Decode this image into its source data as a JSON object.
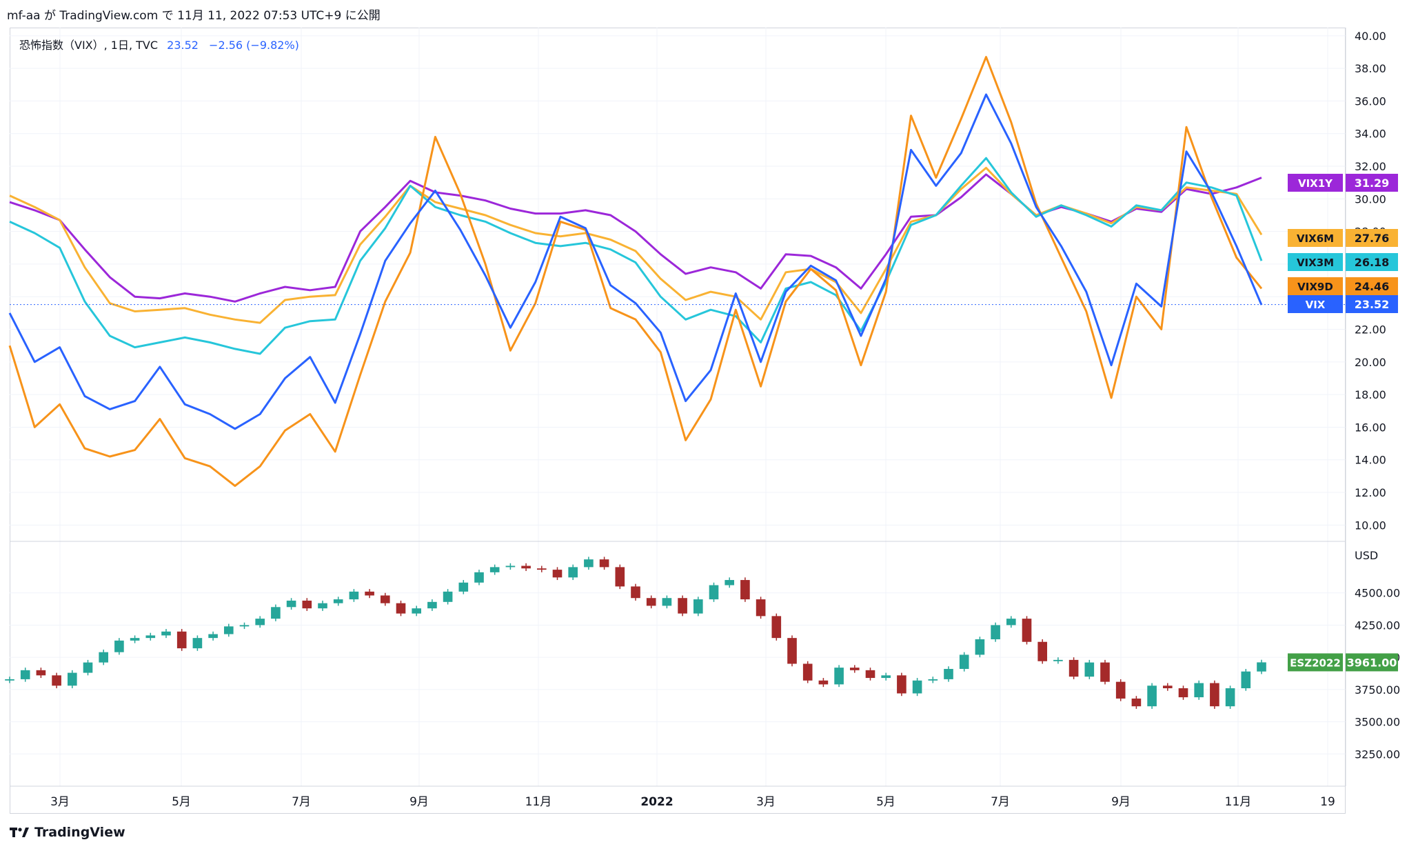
{
  "header": {
    "text": "mf-aa が TradingView.com で 11月 11, 2022 07:53 UTC+9 に公開"
  },
  "legend": {
    "symbol": "恐怖指数（VIX）, 1日, TVC",
    "value": "23.52",
    "change": "−2.56 (−9.82%)"
  },
  "footer": {
    "brand": "TradingView",
    "logo": "tradingview-logo-icon"
  },
  "colors": {
    "VIX": "#2962ff",
    "VIX9D": "#f7931a",
    "VIX3M": "#26c6da",
    "VIX6M": "#f9b233",
    "VIX1Y": "#9c27d9",
    "ES": "#43a047",
    "bull": "#26a69a",
    "bear": "#a52a2a",
    "grid": "#f0f3fa"
  },
  "chart_data": [
    {
      "type": "line",
      "ylim": [
        9,
        40.5
      ],
      "y_ticks": [
        "40.00",
        "38.00",
        "36.00",
        "34.00",
        "32.00",
        "30.00",
        "28.00",
        "26.00",
        "24.00",
        "22.00",
        "20.00",
        "18.00",
        "16.00",
        "14.00",
        "12.00",
        "10.00"
      ],
      "x_ticks": [
        "3月",
        "5月",
        "7月",
        "9月",
        "11月",
        "2022",
        "3月",
        "5月",
        "7月",
        "9月",
        "11月",
        "19"
      ],
      "grid": true,
      "series": [
        {
          "name": "VIX1Y",
          "last": "31.29",
          "values": [
            29.8,
            29.3,
            28.7,
            26.9,
            25.2,
            24.0,
            23.9,
            24.2,
            24.0,
            23.7,
            24.2,
            24.6,
            24.4,
            24.6,
            28.0,
            29.5,
            31.1,
            30.4,
            30.2,
            29.9,
            29.4,
            29.1,
            29.1,
            29.3,
            29.0,
            28.0,
            26.6,
            25.4,
            25.8,
            25.5,
            24.5,
            26.6,
            26.5,
            25.8,
            24.5,
            26.6,
            28.9,
            29.0,
            30.1,
            31.5,
            30.3,
            29.0,
            29.5,
            29.1,
            28.6,
            29.4,
            29.2,
            30.6,
            30.3,
            30.7,
            31.3
          ]
        },
        {
          "name": "VIX6M",
          "last": "27.76",
          "values": [
            30.2,
            29.5,
            28.7,
            25.8,
            23.6,
            23.1,
            23.2,
            23.3,
            22.9,
            22.6,
            22.4,
            23.8,
            24.0,
            24.1,
            27.2,
            28.9,
            30.8,
            29.8,
            29.4,
            29.0,
            28.4,
            27.9,
            27.7,
            27.9,
            27.5,
            26.8,
            25.1,
            23.8,
            24.3,
            24.0,
            22.6,
            25.5,
            25.7,
            24.9,
            23.0,
            25.7,
            28.6,
            29.0,
            30.6,
            31.9,
            30.3,
            29.0,
            29.6,
            29.1,
            28.5,
            29.5,
            29.3,
            30.7,
            30.5,
            30.3,
            27.8
          ]
        },
        {
          "name": "VIX3M",
          "last": "26.18",
          "values": [
            28.6,
            27.9,
            27.0,
            23.7,
            21.6,
            20.9,
            21.2,
            21.5,
            21.2,
            20.8,
            20.5,
            22.1,
            22.5,
            22.6,
            26.2,
            28.2,
            30.8,
            29.5,
            29.0,
            28.6,
            27.9,
            27.3,
            27.1,
            27.3,
            26.9,
            26.1,
            24.0,
            22.6,
            23.2,
            22.8,
            21.2,
            24.5,
            24.9,
            24.1,
            21.9,
            24.9,
            28.4,
            29.0,
            30.8,
            32.5,
            30.4,
            28.9,
            29.6,
            29.0,
            28.3,
            29.6,
            29.3,
            31.0,
            30.7,
            30.2,
            26.2
          ]
        },
        {
          "name": "VIX9D",
          "last": "24.46",
          "values": [
            21.0,
            16.0,
            17.4,
            14.7,
            14.2,
            14.6,
            16.5,
            14.1,
            13.6,
            12.4,
            13.6,
            15.8,
            16.8,
            14.5,
            19.2,
            23.7,
            26.7,
            33.8,
            30.3,
            26.0,
            20.7,
            23.6,
            28.6,
            28.1,
            23.3,
            22.6,
            20.6,
            15.2,
            17.7,
            23.2,
            18.5,
            23.7,
            25.7,
            24.4,
            19.8,
            24.3,
            35.1,
            31.3,
            34.9,
            38.7,
            34.7,
            29.7,
            26.4,
            23.1,
            17.8,
            24.0,
            22.0,
            34.4,
            30.1,
            26.4,
            24.5
          ]
        },
        {
          "name": "VIX",
          "last": "23.52",
          "values": [
            23.0,
            20.0,
            20.9,
            17.9,
            17.1,
            17.6,
            19.7,
            17.4,
            16.8,
            15.9,
            16.8,
            19.0,
            20.3,
            17.5,
            21.7,
            26.2,
            28.5,
            30.5,
            28.1,
            25.3,
            22.1,
            24.9,
            28.9,
            28.2,
            24.7,
            23.6,
            21.8,
            17.6,
            19.5,
            24.2,
            20.0,
            24.3,
            25.9,
            25.0,
            21.6,
            25.1,
            33.0,
            30.8,
            32.8,
            36.4,
            33.4,
            29.5,
            27.1,
            24.3,
            19.8,
            24.8,
            23.4,
            32.9,
            30.4,
            27.1,
            23.5
          ]
        }
      ]
    },
    {
      "type": "candlestick",
      "name": "ESZ2022",
      "last": "3961.00",
      "unit": "USD",
      "ylim": [
        3000,
        4900
      ],
      "y_ticks": [
        "4500.00",
        "4250.00",
        "4000.00",
        "3750.00",
        "3500.00",
        "3250.00"
      ],
      "closes": [
        3830,
        3900,
        3860,
        3780,
        3880,
        3960,
        4040,
        4130,
        4150,
        4170,
        4200,
        4070,
        4150,
        4180,
        4240,
        4250,
        4300,
        4390,
        4440,
        4380,
        4420,
        4450,
        4510,
        4480,
        4420,
        4340,
        4380,
        4430,
        4510,
        4580,
        4660,
        4700,
        4710,
        4690,
        4680,
        4620,
        4700,
        4760,
        4700,
        4550,
        4460,
        4400,
        4460,
        4340,
        4450,
        4560,
        4600,
        4450,
        4320,
        4150,
        3950,
        3820,
        3790,
        3920,
        3900,
        3840,
        3860,
        3720,
        3820,
        3830,
        3910,
        4020,
        4140,
        4250,
        4300,
        4120,
        3970,
        3980,
        3850,
        3960,
        3810,
        3680,
        3620,
        3780,
        3760,
        3690,
        3800,
        3620,
        3760,
        3890,
        3961
      ]
    }
  ]
}
